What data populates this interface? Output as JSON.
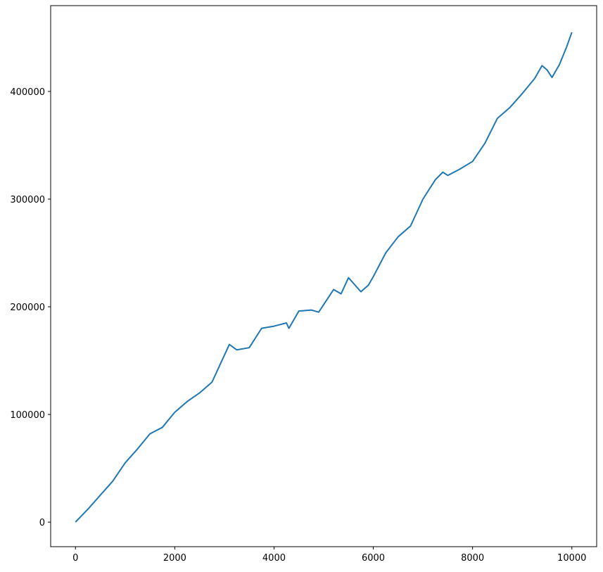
{
  "chart_data": {
    "type": "line",
    "x": [
      0,
      250,
      500,
      750,
      1000,
      1250,
      1500,
      1750,
      2000,
      2250,
      2500,
      2750,
      3000,
      3100,
      3250,
      3500,
      3750,
      4000,
      4250,
      4300,
      4500,
      4750,
      4900,
      5000,
      5200,
      5350,
      5500,
      5750,
      5900,
      6000,
      6250,
      6500,
      6750,
      7000,
      7250,
      7400,
      7500,
      7750,
      8000,
      8250,
      8500,
      8750,
      9000,
      9250,
      9400,
      9500,
      9600,
      9750,
      9900,
      10000
    ],
    "series": [
      {
        "color": "#1f77b4",
        "values": [
          0,
          12000,
          25000,
          38000,
          55000,
          68000,
          82000,
          88000,
          102000,
          112000,
          120000,
          130000,
          155000,
          165000,
          160000,
          162000,
          180000,
          182000,
          185000,
          180000,
          196000,
          197000,
          195000,
          202000,
          216000,
          212000,
          227000,
          214000,
          220000,
          228000,
          250000,
          265000,
          275000,
          300000,
          318000,
          325000,
          322000,
          328000,
          335000,
          352000,
          375000,
          385000,
          398000,
          412000,
          424000,
          420000,
          413000,
          425000,
          442000,
          455000
        ]
      }
    ],
    "xlim": [
      -500,
      10500
    ],
    "xticks": [
      0,
      2000,
      4000,
      6000,
      8000,
      10000
    ],
    "ylim": [
      -22800,
      479700
    ],
    "yticks": [
      0,
      100000,
      200000,
      300000,
      400000
    ]
  }
}
